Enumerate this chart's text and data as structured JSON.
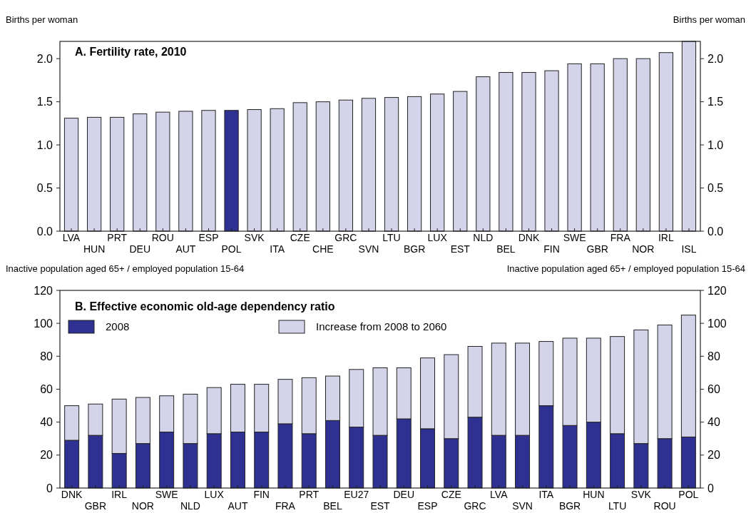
{
  "chart_data": [
    {
      "type": "bar",
      "title": "A. Fertility rate, 2010",
      "ylabel": "Births per woman",
      "y2label": "Births per woman",
      "categories": [
        "LVA",
        "HUN",
        "PRT",
        "DEU",
        "ROU",
        "AUT",
        "ESP",
        "POL",
        "SVK",
        "ITA",
        "CZE",
        "CHE",
        "GRC",
        "SVN",
        "LTU",
        "BGR",
        "LUX",
        "EST",
        "NLD",
        "BEL",
        "DNK",
        "FIN",
        "SWE",
        "GBR",
        "FRA",
        "NOR",
        "IRL",
        "ISL"
      ],
      "values": [
        1.31,
        1.32,
        1.32,
        1.36,
        1.38,
        1.39,
        1.4,
        1.4,
        1.41,
        1.42,
        1.49,
        1.5,
        1.52,
        1.54,
        1.55,
        1.56,
        1.59,
        1.62,
        1.79,
        1.84,
        1.84,
        1.86,
        1.94,
        1.94,
        2.0,
        2.0,
        2.07,
        2.2
      ],
      "colors": [
        "#d3d3ea",
        "#d3d3ea",
        "#d3d3ea",
        "#d3d3ea",
        "#d3d3ea",
        "#d3d3ea",
        "#d3d3ea",
        "#2e3192",
        "#d3d3ea",
        "#d3d3ea",
        "#d3d3ea",
        "#d3d3ea",
        "#d3d3ea",
        "#d3d3ea",
        "#d3d3ea",
        "#d3d3ea",
        "#d3d3ea",
        "#d3d3ea",
        "#d3d3ea",
        "#d3d3ea",
        "#d3d3ea",
        "#d3d3ea",
        "#d3d3ea",
        "#d3d3ea",
        "#d3d3ea",
        "#d3d3ea",
        "#d3d3ea",
        "#d3d3ea"
      ],
      "ylim": [
        0,
        2.2
      ],
      "yticks": [
        {
          "value": 0,
          "label": "0.0"
        },
        0.5,
        {
          "value": 1,
          "label": "1.0"
        },
        1.5,
        {
          "value": 2,
          "label": "2.0"
        }
      ],
      "y2lim": [
        0,
        2.2
      ],
      "y2ticks": [
        {
          "value": 0,
          "label": "0.0"
        },
        0.5,
        {
          "value": 1,
          "label": "1.0"
        },
        1.5,
        {
          "value": 2,
          "label": "2.0"
        }
      ],
      "grid": false,
      "legend": false
    },
    {
      "type": "bar",
      "title": "B. Effective economic old-age dependency ratio",
      "ylabel": "Inactive population aged 65+ / employed population 15-64",
      "y2label": "Inactive population aged 65+ / employed population 15-64",
      "categories": [
        "DNK",
        "GBR",
        "IRL",
        "NOR",
        "SWE",
        "NLD",
        "LUX",
        "AUT",
        "FIN",
        "FRA",
        "PRT",
        "BEL",
        "EU27",
        "EST",
        "DEU",
        "ESP",
        "CZE",
        "GRC",
        "LVA",
        "SVN",
        "ITA",
        "BGR",
        "HUN",
        "LTU",
        "SVK",
        "ROU",
        "POL"
      ],
      "stacked": true,
      "series": [
        {
          "name": "2008",
          "color": "#2e3192",
          "values": [
            29,
            32,
            21,
            27,
            34,
            27,
            33,
            34,
            34,
            39,
            33,
            41,
            37,
            32,
            42,
            36,
            30,
            43,
            32,
            32,
            50,
            38,
            40,
            33,
            27,
            30,
            31
          ]
        },
        {
          "name": "Increase from 2008 to 2060",
          "color": "#d3d3ea",
          "values": [
            21,
            19,
            33,
            28,
            22,
            30,
            28,
            29,
            29,
            27,
            34,
            27,
            35,
            41,
            31,
            43,
            51,
            43,
            56,
            56,
            39,
            53,
            51,
            59,
            69,
            69,
            74
          ]
        }
      ],
      "ylim": [
        0,
        120
      ],
      "yticks": [
        0,
        20,
        40,
        60,
        80,
        100,
        120
      ],
      "y2lim": [
        0,
        120
      ],
      "y2ticks": [
        0,
        20,
        40,
        60,
        80,
        100,
        120
      ],
      "grid": false,
      "legend": "top"
    }
  ]
}
